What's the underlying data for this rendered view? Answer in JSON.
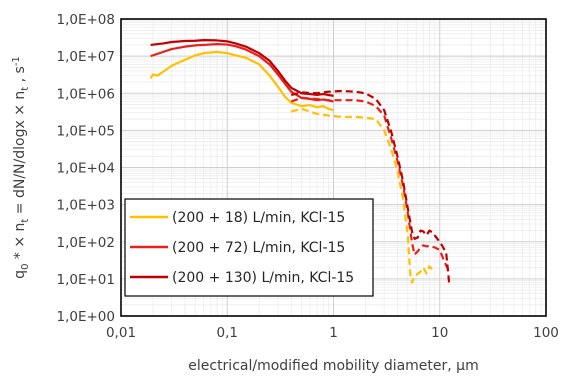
{
  "chart_data": {
    "type": "line",
    "title": "",
    "xlabel": "electrical/modified mobility diameter, µm",
    "ylabel": "q0* × nt = dN/N/dlogx × nt , s-1",
    "ylabel_parts": {
      "q": "q",
      "q_sub": "0",
      "star_mid": " * × n",
      "n_sub": "t",
      "middle": " = dN/N/dlogx × n",
      "n_sub2": "t",
      "unit": " , s",
      "unit_sup": "-1"
    },
    "x_scale": "log",
    "y_scale": "log",
    "xlim": [
      0.01,
      100
    ],
    "ylim": [
      1,
      100000000
    ],
    "x_ticks": [
      0.01,
      0.1,
      1,
      10,
      100
    ],
    "x_tick_labels": [
      "0,01",
      "0,1",
      "1",
      "10",
      "100"
    ],
    "y_ticks": [
      1,
      10,
      100,
      1000,
      10000,
      100000,
      1000000,
      10000000,
      100000000
    ],
    "y_tick_labels": [
      "1,0E+00",
      "1,0E+01",
      "1,0E+02",
      "1,0E+03",
      "1,0E+04",
      "1,0E+05",
      "1,0E+06",
      "1,0E+07",
      "1,0E+08"
    ],
    "grid": "major and minor",
    "legend": {
      "placement": "bottom-left"
    },
    "series": [
      {
        "name": "(200 + 18) L/min, KCl-15",
        "color": "#FFC000",
        "solid": [
          [
            0.019,
            2500000
          ],
          [
            0.02,
            3200000
          ],
          [
            0.022,
            3000000
          ],
          [
            0.025,
            3800000
          ],
          [
            0.03,
            5500000
          ],
          [
            0.04,
            8000000
          ],
          [
            0.05,
            10500000
          ],
          [
            0.06,
            12000000
          ],
          [
            0.07,
            12500000
          ],
          [
            0.08,
            13000000
          ],
          [
            0.1,
            12000000
          ],
          [
            0.12,
            10500000
          ],
          [
            0.15,
            9000000
          ],
          [
            0.2,
            6000000
          ],
          [
            0.25,
            3000000
          ],
          [
            0.3,
            1500000
          ],
          [
            0.35,
            800000
          ],
          [
            0.4,
            550000
          ],
          [
            0.5,
            450000
          ],
          [
            0.6,
            480000
          ],
          [
            0.7,
            420000
          ],
          [
            0.8,
            450000
          ],
          [
            0.9,
            380000
          ],
          [
            1.0,
            350000
          ]
        ],
        "dashed": [
          [
            0.4,
            320000
          ],
          [
            0.5,
            380000
          ],
          [
            0.7,
            280000
          ],
          [
            0.9,
            250000
          ],
          [
            1.2,
            230000
          ],
          [
            1.6,
            230000
          ],
          [
            2.0,
            220000
          ],
          [
            2.5,
            200000
          ],
          [
            3.0,
            100000
          ],
          [
            3.5,
            30000
          ],
          [
            4.0,
            8000
          ],
          [
            4.5,
            1500
          ],
          [
            5.0,
            150
          ],
          [
            5.3,
            12
          ],
          [
            5.5,
            8
          ],
          [
            5.8,
            12
          ],
          [
            6.5,
            15
          ],
          [
            7.0,
            20
          ],
          [
            7.5,
            14
          ],
          [
            8.0,
            22
          ],
          [
            8.5,
            18
          ]
        ]
      },
      {
        "name": "(200 + 72) L/min, KCl-15",
        "color": "#E8201C",
        "solid": [
          [
            0.019,
            10000000
          ],
          [
            0.025,
            13000000
          ],
          [
            0.03,
            15500000
          ],
          [
            0.04,
            18000000
          ],
          [
            0.05,
            19500000
          ],
          [
            0.06,
            20000000
          ],
          [
            0.08,
            21000000
          ],
          [
            0.1,
            20500000
          ],
          [
            0.12,
            18500000
          ],
          [
            0.15,
            15000000
          ],
          [
            0.2,
            10000000
          ],
          [
            0.25,
            6000000
          ],
          [
            0.3,
            3200000
          ],
          [
            0.35,
            1800000
          ],
          [
            0.4,
            1100000
          ],
          [
            0.5,
            750000
          ],
          [
            0.6,
            700000
          ],
          [
            0.7,
            650000
          ],
          [
            0.8,
            680000
          ],
          [
            1.0,
            600000
          ]
        ],
        "dashed": [
          [
            0.4,
            600000
          ],
          [
            0.5,
            750000
          ],
          [
            0.7,
            700000
          ],
          [
            0.9,
            650000
          ],
          [
            1.2,
            650000
          ],
          [
            1.6,
            650000
          ],
          [
            2.0,
            600000
          ],
          [
            2.5,
            450000
          ],
          [
            3.0,
            250000
          ],
          [
            3.5,
            60000
          ],
          [
            4.0,
            15000
          ],
          [
            4.5,
            3500
          ],
          [
            5.0,
            600
          ],
          [
            5.5,
            90
          ],
          [
            5.8,
            45
          ],
          [
            6.2,
            55
          ],
          [
            6.6,
            70
          ],
          [
            7.0,
            80
          ],
          [
            7.5,
            75
          ],
          [
            8.0,
            78
          ],
          [
            9.0,
            70
          ],
          [
            10.0,
            60
          ],
          [
            11.0,
            30
          ],
          [
            12.0,
            18
          ]
        ]
      },
      {
        "name": "(200 + 130) L/min, KCl-15",
        "color": "#C00000",
        "solid": [
          [
            0.019,
            20000000
          ],
          [
            0.025,
            22000000
          ],
          [
            0.03,
            24000000
          ],
          [
            0.04,
            25500000
          ],
          [
            0.05,
            26000000
          ],
          [
            0.06,
            27000000
          ],
          [
            0.08,
            26500000
          ],
          [
            0.1,
            25000000
          ],
          [
            0.12,
            22000000
          ],
          [
            0.15,
            18000000
          ],
          [
            0.2,
            12000000
          ],
          [
            0.25,
            7500000
          ],
          [
            0.3,
            4000000
          ],
          [
            0.35,
            2200000
          ],
          [
            0.4,
            1400000
          ],
          [
            0.5,
            1000000
          ],
          [
            0.6,
            950000
          ],
          [
            0.7,
            900000
          ],
          [
            0.8,
            950000
          ],
          [
            1.0,
            850000
          ]
        ],
        "dashed": [
          [
            0.4,
            900000
          ],
          [
            0.5,
            1050000
          ],
          [
            0.7,
            1000000
          ],
          [
            0.9,
            1100000
          ],
          [
            1.2,
            1150000
          ],
          [
            1.6,
            1100000
          ],
          [
            2.0,
            1000000
          ],
          [
            2.5,
            700000
          ],
          [
            3.0,
            350000
          ],
          [
            3.5,
            90000
          ],
          [
            4.0,
            20000
          ],
          [
            4.5,
            4500
          ],
          [
            5.0,
            800
          ],
          [
            5.5,
            180
          ],
          [
            5.8,
            120
          ],
          [
            6.2,
            130
          ],
          [
            6.6,
            200
          ],
          [
            7.0,
            190
          ],
          [
            7.5,
            150
          ],
          [
            8.0,
            200
          ],
          [
            8.5,
            180
          ],
          [
            9.5,
            120
          ],
          [
            10.5,
            80
          ],
          [
            11.5,
            50
          ],
          [
            12.3,
            7
          ]
        ]
      }
    ]
  }
}
